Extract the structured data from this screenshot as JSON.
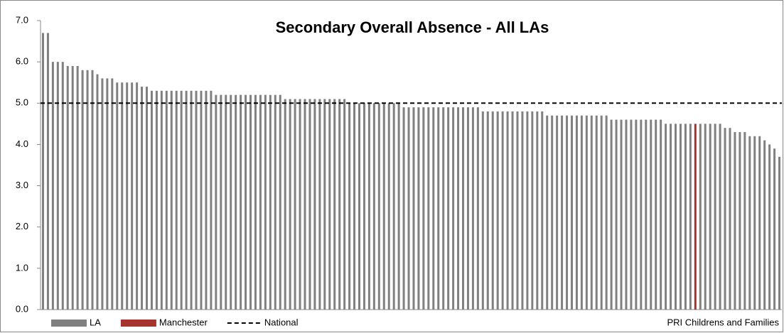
{
  "chart_data": {
    "type": "bar",
    "title": "Secondary Overall Absence - All LAs",
    "source": "PRI Childrens and Families",
    "categories": [
      null,
      null,
      null,
      null,
      null,
      null,
      null,
      null,
      null,
      null,
      null,
      null,
      null,
      null,
      null,
      null,
      null,
      null,
      null,
      null,
      null,
      null,
      null,
      null,
      null,
      null,
      null,
      null,
      null,
      null,
      null,
      null,
      null,
      null,
      null,
      null,
      null,
      null,
      null,
      null,
      null,
      null,
      null,
      null,
      null,
      null,
      null,
      null,
      null,
      null,
      null,
      null,
      null,
      null,
      null,
      null,
      null,
      null,
      null,
      null,
      null,
      null,
      null,
      null,
      null,
      null,
      null,
      null,
      null,
      null,
      null,
      null,
      null,
      null,
      null,
      null,
      null,
      null,
      null,
      null,
      null,
      null,
      null,
      null,
      null,
      null,
      null,
      null,
      null,
      null,
      null,
      null,
      null,
      null,
      null,
      null,
      null,
      null,
      null,
      null,
      null,
      null,
      null,
      null,
      null,
      null,
      null,
      null,
      null,
      null,
      null,
      null,
      null,
      null,
      null,
      null,
      null,
      null,
      null,
      null,
      null,
      null,
      null,
      null,
      null,
      null,
      null,
      null,
      null,
      null,
      null,
      null,
      null,
      null,
      null,
      null,
      null,
      null,
      null,
      null,
      null,
      null,
      null,
      null,
      null,
      null,
      null,
      null,
      null,
      null
    ],
    "series": [
      {
        "name": "LA",
        "color": "#808080",
        "values": [
          6.7,
          6.7,
          6.0,
          6.0,
          6.0,
          5.9,
          5.9,
          5.9,
          5.8,
          5.8,
          5.8,
          5.7,
          5.6,
          5.6,
          5.6,
          5.5,
          5.5,
          5.5,
          5.5,
          5.5,
          5.4,
          5.4,
          5.3,
          5.3,
          5.3,
          5.3,
          5.3,
          5.3,
          5.3,
          5.3,
          5.3,
          5.3,
          5.3,
          5.3,
          5.3,
          5.2,
          5.2,
          5.2,
          5.2,
          5.2,
          5.2,
          5.2,
          5.2,
          5.2,
          5.2,
          5.2,
          5.2,
          5.2,
          5.2,
          5.1,
          5.1,
          5.1,
          5.1,
          5.1,
          5.1,
          5.1,
          5.1,
          5.1,
          5.1,
          5.1,
          5.1,
          5.1,
          5.0,
          5.0,
          5.0,
          5.0,
          5.0,
          5.0,
          5.0,
          5.0,
          5.0,
          5.0,
          5.0,
          4.9,
          4.9,
          4.9,
          4.9,
          4.9,
          4.9,
          4.9,
          4.9,
          4.9,
          4.9,
          4.9,
          4.9,
          4.9,
          4.9,
          4.9,
          4.9,
          4.8,
          4.8,
          4.8,
          4.8,
          4.8,
          4.8,
          4.8,
          4.8,
          4.8,
          4.8,
          4.8,
          4.8,
          4.8,
          4.7,
          4.7,
          4.7,
          4.7,
          4.7,
          4.7,
          4.7,
          4.7,
          4.7,
          4.7,
          4.7,
          4.7,
          4.7,
          4.6,
          4.6,
          4.6,
          4.6,
          4.6,
          4.6,
          4.6,
          4.6,
          4.6,
          4.6,
          4.6,
          4.5,
          4.5,
          4.5,
          4.5,
          4.5,
          4.5,
          null,
          4.5,
          4.5,
          4.5,
          4.5,
          4.5,
          4.4,
          4.4,
          4.3,
          4.3,
          4.3,
          4.2,
          4.2,
          4.2,
          4.1,
          4.0,
          3.9,
          3.7
        ]
      },
      {
        "name": "Manchester",
        "color": "#a5332e",
        "values": [
          null,
          null,
          null,
          null,
          null,
          null,
          null,
          null,
          null,
          null,
          null,
          null,
          null,
          null,
          null,
          null,
          null,
          null,
          null,
          null,
          null,
          null,
          null,
          null,
          null,
          null,
          null,
          null,
          null,
          null,
          null,
          null,
          null,
          null,
          null,
          null,
          null,
          null,
          null,
          null,
          null,
          null,
          null,
          null,
          null,
          null,
          null,
          null,
          null,
          null,
          null,
          null,
          null,
          null,
          null,
          null,
          null,
          null,
          null,
          null,
          null,
          null,
          null,
          null,
          null,
          null,
          null,
          null,
          null,
          null,
          null,
          null,
          null,
          null,
          null,
          null,
          null,
          null,
          null,
          null,
          null,
          null,
          null,
          null,
          null,
          null,
          null,
          null,
          null,
          null,
          null,
          null,
          null,
          null,
          null,
          null,
          null,
          null,
          null,
          null,
          null,
          null,
          null,
          null,
          null,
          null,
          null,
          null,
          null,
          null,
          null,
          null,
          null,
          null,
          null,
          null,
          null,
          null,
          null,
          null,
          null,
          null,
          null,
          null,
          null,
          null,
          null,
          null,
          null,
          null,
          null,
          null,
          4.5,
          null,
          null,
          null,
          null,
          null,
          null,
          null,
          null,
          null,
          null,
          null,
          null,
          null,
          null,
          null,
          null,
          null
        ]
      }
    ],
    "reference_line": {
      "name": "National",
      "value": 5.0,
      "color": "#000000"
    },
    "ylim": [
      0,
      7
    ],
    "yticks": [
      {
        "value": 0,
        "label": "0.0"
      },
      {
        "value": 1,
        "label": "1.0"
      },
      {
        "value": 2,
        "label": "2.0"
      },
      {
        "value": 3,
        "label": "3.0"
      },
      {
        "value": 4,
        "label": "4.0"
      },
      {
        "value": 5,
        "label": "5.0"
      },
      {
        "value": 6,
        "label": "6.0"
      },
      {
        "value": 7,
        "label": "7.0"
      }
    ],
    "grid": false
  }
}
